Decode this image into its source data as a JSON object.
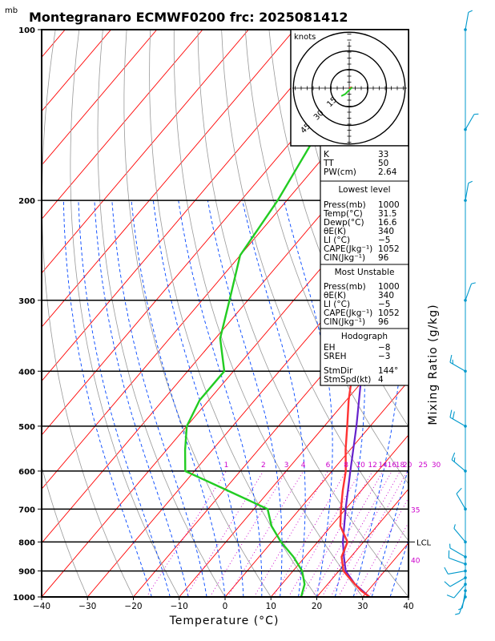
{
  "header": {
    "unit_label": "mb",
    "title": "Montegranaro ECMWF0200 frc: 2025081412"
  },
  "chart_data": {
    "type": "skew-t log-p sounding",
    "xlabel": "Temperature (°C)",
    "ylabel_right": "Mixing Ratio (g/kg)",
    "x_ticks": [
      -40,
      -30,
      -20,
      -10,
      0,
      10,
      20,
      30,
      40
    ],
    "xlim": [
      -40,
      40
    ],
    "p_ticks": [
      100,
      200,
      300,
      400,
      500,
      600,
      700,
      800,
      900,
      1000
    ],
    "plim": [
      1000,
      100
    ],
    "mixing_ratio_labels": [
      "1",
      "2",
      "3",
      "4",
      "6",
      "8",
      "10",
      "12",
      "14",
      "16",
      "18",
      "20",
      "25",
      "30"
    ],
    "adiabat_labels": [
      "35",
      "40"
    ],
    "lcl_label": "LCL",
    "lcl_pressure": 800,
    "temperature_profile": [
      {
        "p": 1000,
        "t": 31.5
      },
      {
        "p": 975,
        "t": 28.5
      },
      {
        "p": 950,
        "t": 26
      },
      {
        "p": 925,
        "t": 23.5
      },
      {
        "p": 900,
        "t": 21
      },
      {
        "p": 850,
        "t": 18
      },
      {
        "p": 800,
        "t": 16.5
      },
      {
        "p": 750,
        "t": 12
      },
      {
        "p": 700,
        "t": 9
      },
      {
        "p": 650,
        "t": 6
      },
      {
        "p": 600,
        "t": 3
      },
      {
        "p": 550,
        "t": -1
      },
      {
        "p": 500,
        "t": -5
      },
      {
        "p": 450,
        "t": -9.5
      },
      {
        "p": 400,
        "t": -14
      },
      {
        "p": 350,
        "t": -19
      },
      {
        "p": 300,
        "t": -26
      },
      {
        "p": 250,
        "t": -36
      },
      {
        "p": 200,
        "t": -45
      },
      {
        "p": 150,
        "t": -52
      },
      {
        "p": 100,
        "t": -56
      }
    ],
    "dewpoint_profile": [
      {
        "p": 1000,
        "t": 16.6
      },
      {
        "p": 950,
        "t": 15
      },
      {
        "p": 900,
        "t": 12
      },
      {
        "p": 850,
        "t": 7.5
      },
      {
        "p": 800,
        "t": 2
      },
      {
        "p": 750,
        "t": -3
      },
      {
        "p": 700,
        "t": -7
      },
      {
        "p": 650,
        "t": -19
      },
      {
        "p": 600,
        "t": -32
      },
      {
        "p": 550,
        "t": -36
      },
      {
        "p": 500,
        "t": -40
      },
      {
        "p": 450,
        "t": -42
      },
      {
        "p": 400,
        "t": -42
      },
      {
        "p": 350,
        "t": -49
      },
      {
        "p": 300,
        "t": -54
      },
      {
        "p": 250,
        "t": -60
      },
      {
        "p": 200,
        "t": -62
      },
      {
        "p": 150,
        "t": -66
      },
      {
        "p": 100,
        "t": -70
      }
    ],
    "parcel_profile": [
      {
        "p": 1000,
        "t": 31.5
      },
      {
        "p": 950,
        "t": 26
      },
      {
        "p": 900,
        "t": 21.5
      },
      {
        "p": 850,
        "t": 18.5
      },
      {
        "p": 800,
        "t": 15.5
      },
      {
        "p": 700,
        "t": 10
      },
      {
        "p": 600,
        "t": 4
      },
      {
        "p": 500,
        "t": -3
      },
      {
        "p": 400,
        "t": -12
      },
      {
        "p": 300,
        "t": -25
      },
      {
        "p": 250,
        "t": -34
      },
      {
        "p": 200,
        "t": -44
      },
      {
        "p": 150,
        "t": -57
      },
      {
        "p": 120,
        "t": -66
      }
    ]
  },
  "hodograph": {
    "title": "knots",
    "ring_labels": [
      "15",
      "30",
      "45"
    ],
    "points_kt": [
      [
        0,
        0
      ],
      [
        1.5,
        0.5
      ],
      [
        -2,
        -3
      ],
      [
        -4,
        -4
      ]
    ]
  },
  "indices": {
    "top": [
      {
        "label": "K",
        "value": "33"
      },
      {
        "label": "TT",
        "value": "50"
      },
      {
        "label": "PW(cm)",
        "value": "2.64"
      }
    ],
    "lowest_level": {
      "title": "Lowest level",
      "rows": [
        {
          "label": "Press(mb)",
          "value": "1000"
        },
        {
          "label": "Temp(°C)",
          "value": "31.5"
        },
        {
          "label": "Dewp(°C)",
          "value": "16.6"
        },
        {
          "label": "θE(K)",
          "value": "340"
        },
        {
          "label": "LI (°C)",
          "value": "−5"
        },
        {
          "label": "CAPE(Jkg⁻¹)",
          "value": "1052"
        },
        {
          "label": "CIN(Jkg⁻¹)",
          "value": "96"
        }
      ]
    },
    "most_unstable": {
      "title": "Most Unstable",
      "rows": [
        {
          "label": "Press(mb)",
          "value": "1000"
        },
        {
          "label": "θE(K)",
          "value": "340"
        },
        {
          "label": "LI (°C)",
          "value": "−5"
        },
        {
          "label": "CAPE(Jkg⁻¹)",
          "value": "1052"
        },
        {
          "label": "CIN(Jkg⁻¹)",
          "value": "96"
        }
      ]
    },
    "hodograph_box": {
      "title": "Hodograph",
      "rows": [
        {
          "label": "EH",
          "value": "−8"
        },
        {
          "label": "SREH",
          "value": "−3"
        },
        {
          "label": "StmDir",
          "value": "144°"
        },
        {
          "label": "StmSpd(kt)",
          "value": "4"
        }
      ]
    }
  },
  "wind_barbs": [
    {
      "p": 1000,
      "dir": 200,
      "spd": 5
    },
    {
      "p": 975,
      "dir": 190,
      "spd": 5
    },
    {
      "p": 950,
      "dir": 220,
      "spd": 10
    },
    {
      "p": 925,
      "dir": 240,
      "spd": 10
    },
    {
      "p": 900,
      "dir": 260,
      "spd": 10
    },
    {
      "p": 875,
      "dir": 290,
      "spd": 10
    },
    {
      "p": 850,
      "dir": 300,
      "spd": 5
    },
    {
      "p": 800,
      "dir": 320,
      "spd": 5
    },
    {
      "p": 700,
      "dir": 330,
      "spd": 10
    },
    {
      "p": 600,
      "dir": 310,
      "spd": 15
    },
    {
      "p": 500,
      "dir": 300,
      "spd": 20
    },
    {
      "p": 400,
      "dir": 300,
      "spd": 15
    },
    {
      "p": 300,
      "dir": 20,
      "spd": 5
    },
    {
      "p": 200,
      "dir": 10,
      "spd": 5
    },
    {
      "p": 150,
      "dir": 30,
      "spd": 5
    },
    {
      "p": 100,
      "dir": 10,
      "spd": 5
    }
  ],
  "colors": {
    "temperature": "#ff3333",
    "dewpoint": "#22cc22",
    "parcel": "#6622cc",
    "isotherm": "#ff0000",
    "dry_adiabat": "#999999",
    "moist_adiabat": "#0044ff",
    "mixing_ratio": "#cc00cc",
    "wind": "#0099cc"
  }
}
